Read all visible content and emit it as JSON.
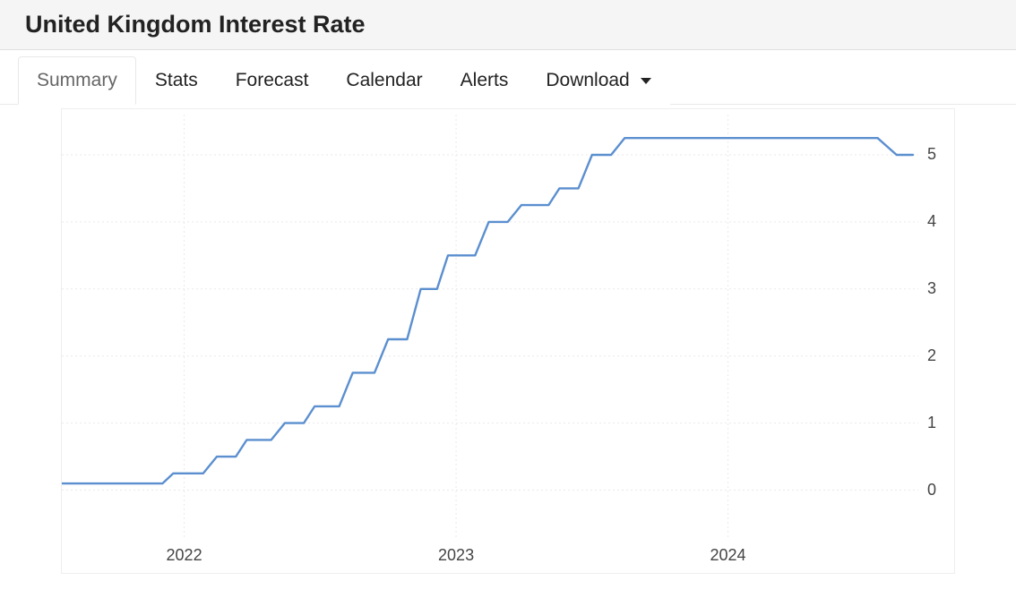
{
  "header": {
    "title": "United Kingdom Interest Rate"
  },
  "tabs": {
    "items": [
      {
        "label": "Summary",
        "active": true,
        "hasCaret": false
      },
      {
        "label": "Stats",
        "active": false,
        "hasCaret": false
      },
      {
        "label": "Forecast",
        "active": false,
        "hasCaret": false
      },
      {
        "label": "Calendar",
        "active": false,
        "hasCaret": false
      },
      {
        "label": "Alerts",
        "active": false,
        "hasCaret": false
      },
      {
        "label": "Download",
        "active": false,
        "hasCaret": true
      }
    ]
  },
  "chart": {
    "type": "line",
    "background_color": "#ffffff",
    "grid_color": "#e9e9e9",
    "line_color": "#5b8fcf",
    "line_width": 2.4,
    "axis_color": "#e0e0e0",
    "tick_font_color": "#444444",
    "tick_font_size": 18,
    "x": {
      "min": 2021.55,
      "max": 2024.7,
      "ticks": [
        2022,
        2023,
        2024
      ],
      "tick_labels": [
        "2022",
        "2023",
        "2024"
      ]
    },
    "y": {
      "min": -0.7,
      "max": 5.6,
      "ticks": [
        0,
        1,
        2,
        3,
        4,
        5
      ],
      "tick_labels": [
        "0",
        "1",
        "2",
        "3",
        "4",
        "5"
      ]
    },
    "series": [
      {
        "name": "interest-rate",
        "points": [
          [
            2021.55,
            0.1
          ],
          [
            2021.92,
            0.1
          ],
          [
            2021.96,
            0.25
          ],
          [
            2022.07,
            0.25
          ],
          [
            2022.12,
            0.5
          ],
          [
            2022.19,
            0.5
          ],
          [
            2022.23,
            0.75
          ],
          [
            2022.32,
            0.75
          ],
          [
            2022.37,
            1.0
          ],
          [
            2022.44,
            1.0
          ],
          [
            2022.48,
            1.25
          ],
          [
            2022.57,
            1.25
          ],
          [
            2022.62,
            1.75
          ],
          [
            2022.7,
            1.75
          ],
          [
            2022.75,
            2.25
          ],
          [
            2022.82,
            2.25
          ],
          [
            2022.87,
            3.0
          ],
          [
            2022.93,
            3.0
          ],
          [
            2022.97,
            3.5
          ],
          [
            2023.07,
            3.5
          ],
          [
            2023.12,
            4.0
          ],
          [
            2023.19,
            4.0
          ],
          [
            2023.24,
            4.25
          ],
          [
            2023.34,
            4.25
          ],
          [
            2023.38,
            4.5
          ],
          [
            2023.45,
            4.5
          ],
          [
            2023.5,
            5.0
          ],
          [
            2023.57,
            5.0
          ],
          [
            2023.62,
            5.25
          ],
          [
            2024.55,
            5.25
          ],
          [
            2024.62,
            5.0
          ],
          [
            2024.68,
            5.0
          ]
        ]
      }
    ]
  }
}
